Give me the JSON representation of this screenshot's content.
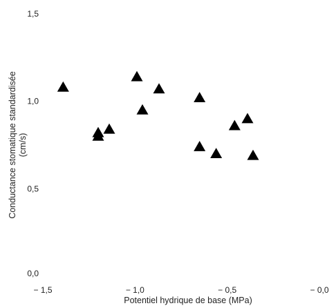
{
  "chart_data": {
    "type": "scatter",
    "xlabel": "Potentiel hydrique de base (MPa)",
    "ylabel_lines": [
      "Conductance stomatique standardisée",
      "(cm/s)"
    ],
    "xlim": [
      -1.5,
      0.0
    ],
    "ylim": [
      0.0,
      1.5
    ],
    "x_ticks": [
      {
        "value": -1.5,
        "label": "− 1,5"
      },
      {
        "value": -1.0,
        "label": "− 1,0"
      },
      {
        "value": -0.5,
        "label": "− 0,5"
      },
      {
        "value": 0.0,
        "label": "− 0,0"
      }
    ],
    "y_ticks": [
      {
        "value": 0.0,
        "label": "0,0"
      },
      {
        "value": 0.5,
        "label": "0,5"
      },
      {
        "value": 1.0,
        "label": "1,0"
      },
      {
        "value": 1.5,
        "label": "1,5"
      }
    ],
    "grid": false,
    "marker": "triangle",
    "marker_color": "#000000",
    "points": [
      {
        "x": -1.39,
        "y": 1.08
      },
      {
        "x": -1.2,
        "y": 0.82
      },
      {
        "x": -1.2,
        "y": 0.8
      },
      {
        "x": -1.14,
        "y": 0.84
      },
      {
        "x": -0.99,
        "y": 1.14
      },
      {
        "x": -0.96,
        "y": 0.95
      },
      {
        "x": -0.87,
        "y": 1.07
      },
      {
        "x": -0.65,
        "y": 1.02
      },
      {
        "x": -0.65,
        "y": 0.74
      },
      {
        "x": -0.56,
        "y": 0.7
      },
      {
        "x": -0.46,
        "y": 0.86
      },
      {
        "x": -0.39,
        "y": 0.9
      },
      {
        "x": -0.36,
        "y": 0.69
      }
    ]
  }
}
